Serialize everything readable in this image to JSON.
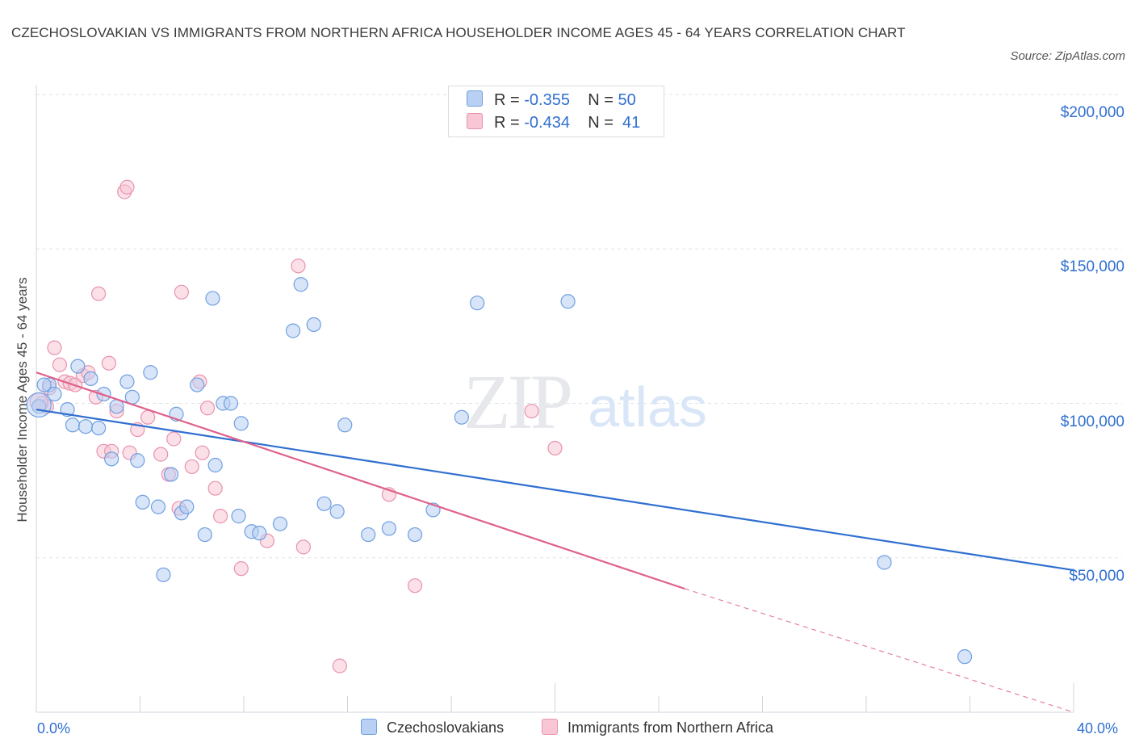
{
  "title": "CZECHOSLOVAKIAN VS IMMIGRANTS FROM NORTHERN AFRICA HOUSEHOLDER INCOME AGES 45 - 64 YEARS CORRELATION CHART",
  "source": "Source: ZipAtlas.com",
  "watermark": {
    "zip": "ZIP",
    "atlas": "atlas"
  },
  "colors": {
    "blue_fill": "#b8d0f4",
    "blue_stroke": "#6f9fe0",
    "blue_line": "#2f6fd0",
    "pink_fill": "#f8c6d5",
    "pink_stroke": "#e893ae",
    "pink_line": "#e0608a",
    "grid": "#dde3ea",
    "tick_text": "#2f6fd0"
  },
  "legend": {
    "rows": [
      {
        "r_label": "R =",
        "r_value": "-0.355",
        "n_label": "N =",
        "n_value": "50",
        "color": "blue"
      },
      {
        "r_label": "R =",
        "r_value": "-0.434",
        "n_label": "N =",
        "n_value": "41",
        "color": "pink"
      }
    ]
  },
  "bottom_legend": [
    "Czechoslovakians",
    "Immigrants from Northern Africa"
  ],
  "chart_data": {
    "type": "scatter",
    "title": "CZECHOSLOVAKIAN VS IMMIGRANTS FROM NORTHERN AFRICA HOUSEHOLDER INCOME AGES 45 - 64 YEARS CORRELATION CHART",
    "xlabel": "",
    "ylabel": "Householder Income Ages 45 - 64 years",
    "xlim": [
      0,
      40
    ],
    "ylim": [
      0,
      200000
    ],
    "x_tick_labels": [
      "0.0%",
      "40.0%"
    ],
    "y_ticks": [
      50000,
      100000,
      150000,
      200000
    ],
    "y_tick_labels": [
      "$50,000",
      "$100,000",
      "$150,000",
      "$200,000"
    ],
    "grid": true,
    "legend_position": "top-center",
    "series": [
      {
        "name": "Czechoslovakians",
        "color": "blue",
        "r": -0.355,
        "n": 50,
        "points": [
          [
            0.1,
            99000
          ],
          [
            0.5,
            106000
          ],
          [
            0.7,
            103000
          ],
          [
            1.2,
            98000
          ],
          [
            1.4,
            93000
          ],
          [
            1.6,
            112000
          ],
          [
            1.9,
            92500
          ],
          [
            2.1,
            108000
          ],
          [
            2.4,
            92000
          ],
          [
            2.6,
            103000
          ],
          [
            2.9,
            82000
          ],
          [
            3.1,
            99000
          ],
          [
            3.5,
            107000
          ],
          [
            3.7,
            102000
          ],
          [
            3.9,
            81500
          ],
          [
            4.1,
            68000
          ],
          [
            4.4,
            110000
          ],
          [
            4.7,
            66500
          ],
          [
            4.9,
            44500
          ],
          [
            5.2,
            77000
          ],
          [
            5.4,
            96500
          ],
          [
            5.6,
            64500
          ],
          [
            5.8,
            66500
          ],
          [
            6.2,
            106000
          ],
          [
            6.5,
            57500
          ],
          [
            6.8,
            134000
          ],
          [
            6.9,
            80000
          ],
          [
            7.2,
            100000
          ],
          [
            7.5,
            100000
          ],
          [
            7.8,
            63500
          ],
          [
            7.9,
            93500
          ],
          [
            8.3,
            58500
          ],
          [
            8.6,
            58000
          ],
          [
            9.4,
            61000
          ],
          [
            9.9,
            123500
          ],
          [
            10.2,
            138500
          ],
          [
            10.7,
            125500
          ],
          [
            11.1,
            67500
          ],
          [
            11.6,
            65000
          ],
          [
            11.9,
            93000
          ],
          [
            12.8,
            57500
          ],
          [
            13.6,
            59500
          ],
          [
            14.6,
            57500
          ],
          [
            15.3,
            65500
          ],
          [
            16.4,
            95500
          ],
          [
            17.0,
            132500
          ],
          [
            20.5,
            133000
          ],
          [
            32.7,
            48500
          ],
          [
            35.8,
            18000
          ],
          [
            0.3,
            106000
          ]
        ]
      },
      {
        "name": "Immigrants from Northern Africa",
        "color": "pink",
        "r": -0.434,
        "n": 41,
        "points": [
          [
            0.2,
            100000
          ],
          [
            0.5,
            105000
          ],
          [
            0.7,
            118000
          ],
          [
            0.9,
            112500
          ],
          [
            1.1,
            107000
          ],
          [
            1.3,
            106500
          ],
          [
            1.5,
            106000
          ],
          [
            1.8,
            109000
          ],
          [
            2.0,
            110000
          ],
          [
            2.3,
            102000
          ],
          [
            2.4,
            135500
          ],
          [
            2.6,
            84500
          ],
          [
            2.8,
            113000
          ],
          [
            2.9,
            84500
          ],
          [
            3.1,
            97500
          ],
          [
            3.4,
            168500
          ],
          [
            3.5,
            170000
          ],
          [
            3.6,
            84000
          ],
          [
            3.9,
            91500
          ],
          [
            4.3,
            95500
          ],
          [
            4.8,
            83500
          ],
          [
            5.1,
            77000
          ],
          [
            5.3,
            88500
          ],
          [
            5.5,
            66000
          ],
          [
            5.6,
            136000
          ],
          [
            6.0,
            79500
          ],
          [
            6.3,
            107000
          ],
          [
            6.4,
            84000
          ],
          [
            6.6,
            98500
          ],
          [
            6.9,
            72500
          ],
          [
            7.1,
            63500
          ],
          [
            7.9,
            46500
          ],
          [
            8.9,
            55500
          ],
          [
            10.1,
            144500
          ],
          [
            10.3,
            53500
          ],
          [
            11.7,
            15000
          ],
          [
            13.6,
            70500
          ],
          [
            14.6,
            41000
          ],
          [
            19.1,
            97500
          ],
          [
            20.0,
            85500
          ],
          [
            0.4,
            99000
          ]
        ]
      }
    ],
    "trendlines": [
      {
        "series": "Czechoslovakians",
        "from": [
          0,
          98000
        ],
        "to": [
          40,
          46000
        ],
        "style": "solid"
      },
      {
        "series": "Immigrants from Northern Africa",
        "from": [
          0,
          110000
        ],
        "to": [
          25,
          40000
        ],
        "style": "solid"
      },
      {
        "series": "Immigrants from Northern Africa",
        "from": [
          25,
          40000
        ],
        "to": [
          40,
          0
        ],
        "style": "dashed"
      }
    ]
  }
}
